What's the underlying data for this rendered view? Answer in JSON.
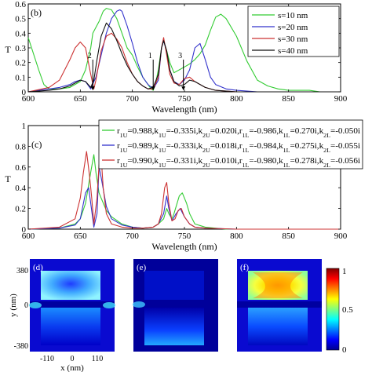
{
  "chart_data": [
    {
      "type": "line",
      "panel_label": "(b)",
      "xlabel": "Wavelength (nm)",
      "ylabel": "T",
      "xlim": [
        600,
        900
      ],
      "ylim": [
        0,
        0.6
      ],
      "xticks": [
        600,
        650,
        700,
        750,
        800,
        850,
        900
      ],
      "yticks": [
        0,
        0.1,
        0.2,
        0.3,
        0.4,
        0.5,
        0.6
      ],
      "ytick_labels": [
        "0",
        "0.1",
        "0.2",
        "0.3",
        "0.4",
        "0.5",
        "0.6"
      ],
      "legend_position": "top-right",
      "series": [
        {
          "name": "s=10 nm",
          "color": "#33cc33",
          "x": [
            600,
            610,
            615,
            620,
            625,
            630,
            640,
            650,
            655,
            660,
            662,
            665,
            668,
            672,
            675,
            680,
            685,
            690,
            695,
            700,
            705,
            710,
            715,
            718,
            720,
            722,
            725,
            728,
            730,
            733,
            736,
            740,
            745,
            750,
            755,
            760,
            765,
            770,
            775,
            780,
            785,
            790,
            800,
            810,
            820,
            830,
            840,
            850,
            860,
            870,
            880,
            890,
            900
          ],
          "y": [
            0.37,
            0.15,
            0.05,
            0.02,
            0.02,
            0.02,
            0.03,
            0.07,
            0.15,
            0.3,
            0.4,
            0.44,
            0.48,
            0.55,
            0.57,
            0.56,
            0.5,
            0.4,
            0.3,
            0.25,
            0.17,
            0.1,
            0.05,
            0.02,
            0.01,
            0.05,
            0.15,
            0.3,
            0.35,
            0.28,
            0.2,
            0.13,
            0.15,
            0.17,
            0.19,
            0.22,
            0.26,
            0.32,
            0.42,
            0.51,
            0.53,
            0.5,
            0.38,
            0.21,
            0.08,
            0.04,
            0.02,
            0.01,
            0.01,
            0.01,
            0.0,
            0.0,
            0.0
          ]
        },
        {
          "name": "s=20 nm",
          "color": "#3333cc",
          "x": [
            600,
            620,
            630,
            640,
            645,
            650,
            655,
            660,
            665,
            670,
            675,
            680,
            685,
            688,
            690,
            695,
            700,
            705,
            710,
            715,
            720,
            725,
            728,
            730,
            733,
            736,
            740,
            745,
            750,
            755,
            760,
            765,
            770,
            775,
            780,
            790,
            800,
            820,
            840,
            860,
            880,
            900
          ],
          "y": [
            0.0,
            0.02,
            0.03,
            0.05,
            0.07,
            0.08,
            0.07,
            0.02,
            0.1,
            0.25,
            0.4,
            0.5,
            0.55,
            0.56,
            0.55,
            0.45,
            0.33,
            0.2,
            0.1,
            0.05,
            0.02,
            0.08,
            0.3,
            0.35,
            0.27,
            0.15,
            0.07,
            0.05,
            0.08,
            0.15,
            0.3,
            0.33,
            0.22,
            0.1,
            0.05,
            0.02,
            0.01,
            0.0,
            0.0,
            0.0,
            0.0,
            0.0
          ]
        },
        {
          "name": "s=30 nm",
          "color": "#cc3333",
          "x": [
            600,
            620,
            630,
            640,
            645,
            650,
            655,
            660,
            663,
            665,
            670,
            675,
            680,
            685,
            690,
            695,
            700,
            705,
            710,
            715,
            720,
            725,
            728,
            730,
            733,
            736,
            740,
            745,
            750,
            755,
            760,
            770,
            780,
            800,
            820,
            840,
            860,
            880,
            900
          ],
          "y": [
            0.0,
            0.03,
            0.08,
            0.22,
            0.3,
            0.34,
            0.3,
            0.12,
            0.02,
            0.08,
            0.28,
            0.38,
            0.4,
            0.36,
            0.3,
            0.2,
            0.12,
            0.07,
            0.04,
            0.02,
            0.02,
            0.1,
            0.3,
            0.37,
            0.25,
            0.12,
            0.06,
            0.05,
            0.09,
            0.1,
            0.07,
            0.03,
            0.01,
            0.0,
            0.0,
            0.0,
            0.0,
            0.0,
            0.0
          ]
        },
        {
          "name": "s=40 nm",
          "color": "#111111",
          "x": [
            600,
            620,
            630,
            640,
            650,
            655,
            660,
            663,
            666,
            670,
            675,
            680,
            685,
            690,
            695,
            700,
            705,
            710,
            715,
            720,
            725,
            728,
            730,
            733,
            736,
            740,
            745,
            750,
            755,
            760,
            770,
            780,
            800,
            820,
            840,
            860,
            880,
            900
          ],
          "y": [
            0.0,
            0.01,
            0.02,
            0.04,
            0.08,
            0.07,
            0.03,
            0.08,
            0.22,
            0.38,
            0.47,
            0.43,
            0.35,
            0.26,
            0.18,
            0.12,
            0.07,
            0.04,
            0.02,
            0.03,
            0.12,
            0.3,
            0.35,
            0.28,
            0.15,
            0.07,
            0.04,
            0.05,
            0.08,
            0.07,
            0.03,
            0.01,
            0.0,
            0.0,
            0.0,
            0.0,
            0.0,
            0.0
          ]
        }
      ],
      "annotations": [
        {
          "label": "2",
          "x": 662,
          "y_tip": 0.01,
          "y_tail": 0.22
        },
        {
          "label": "1",
          "x": 720,
          "y_tip": 0.01,
          "y_tail": 0.22
        },
        {
          "label": "3",
          "x": 749,
          "y_tip": 0.01,
          "y_tail": 0.22
        }
      ]
    },
    {
      "type": "line",
      "panel_label": "(c)",
      "xlabel": "Wavelength (nm)",
      "ylabel": "T",
      "xlim": [
        600,
        900
      ],
      "ylim": [
        0,
        1
      ],
      "xticks": [
        600,
        650,
        700,
        750,
        800,
        850,
        900
      ],
      "yticks": [
        0,
        0.2,
        0.4,
        0.6,
        0.8,
        1
      ],
      "ytick_labels": [
        "0",
        "0.2",
        "0.4",
        "0.6",
        "0.8",
        "1"
      ],
      "legend_position": "top-right",
      "series": [
        {
          "name": "r1U=0.988,k1U=-0.335i,k2U=0.020i,r1L=-0.986,k1L=0.270i,k2L=-0.050i",
          "legend_text": [
            "r",
            "1U",
            "=0.988,k",
            "1U",
            "=-0.335i,k",
            "2U",
            "=0.020i,r",
            "1L",
            "=-0.986,k",
            "1L",
            "=0.270i,k",
            "2L",
            "=-0.050i"
          ],
          "color": "#33cc33",
          "x": [
            600,
            630,
            645,
            650,
            655,
            660,
            663,
            665,
            668,
            670,
            675,
            680,
            690,
            700,
            710,
            720,
            725,
            730,
            733,
            735,
            738,
            740,
            745,
            748,
            752,
            755,
            760,
            770,
            790,
            820,
            860,
            900
          ],
          "y": [
            0.0,
            0.01,
            0.05,
            0.1,
            0.25,
            0.55,
            0.72,
            0.55,
            0.35,
            0.3,
            0.18,
            0.12,
            0.05,
            0.02,
            0.01,
            0.02,
            0.05,
            0.1,
            0.2,
            0.15,
            0.1,
            0.15,
            0.32,
            0.35,
            0.25,
            0.15,
            0.05,
            0.02,
            0.0,
            0.0,
            0.0,
            0.0
          ]
        },
        {
          "name": "r1U=0.989,k1U=-0.333i,k2U=0.018i,r1L=-0.984,k1L=0.275i,k2L=-0.055i",
          "legend_text": [
            "r",
            "1U",
            "=0.989,k",
            "1U",
            "=-0.333i,k",
            "2U",
            "=0.018i,r",
            "1L",
            "=-0.984,k",
            "1L",
            "=0.275i,k",
            "2L",
            "=-0.055i"
          ],
          "color": "#3333cc",
          "x": [
            600,
            630,
            645,
            650,
            655,
            658,
            660,
            663,
            666,
            668,
            670,
            675,
            680,
            690,
            700,
            710,
            720,
            725,
            730,
            733,
            735,
            738,
            742,
            746,
            750,
            755,
            760,
            770,
            800,
            840,
            880,
            900
          ],
          "y": [
            0.0,
            0.01,
            0.04,
            0.1,
            0.35,
            0.4,
            0.25,
            0.02,
            0.15,
            0.6,
            0.5,
            0.22,
            0.1,
            0.04,
            0.02,
            0.01,
            0.02,
            0.05,
            0.15,
            0.32,
            0.2,
            0.08,
            0.15,
            0.2,
            0.12,
            0.05,
            0.02,
            0.01,
            0.0,
            0.0,
            0.0,
            0.0
          ]
        },
        {
          "name": "r1U=0.990,k1U=-0.331i,k2U=0.010i,r1L=-0.980,k1L=0.278i,k2L=-0.056i",
          "legend_text": [
            "r",
            "1U",
            "=0.990,k",
            "1U",
            "=-0.331i,k",
            "2U",
            "=0.010i,r",
            "1L",
            "=-0.980,k",
            "1L",
            "=0.278i,k",
            "2L",
            "=-0.056i"
          ],
          "color": "#cc3333",
          "x": [
            600,
            630,
            645,
            650,
            653,
            656,
            659,
            661,
            663,
            666,
            668,
            670,
            672,
            675,
            680,
            690,
            700,
            710,
            720,
            725,
            728,
            731,
            733,
            735,
            738,
            741,
            744,
            747,
            750,
            755,
            760,
            770,
            800,
            840,
            880,
            900
          ],
          "y": [
            0.0,
            0.02,
            0.1,
            0.3,
            0.55,
            0.75,
            0.5,
            0.3,
            0.05,
            0.3,
            0.62,
            0.7,
            0.4,
            0.15,
            0.05,
            0.02,
            0.01,
            0.01,
            0.02,
            0.05,
            0.15,
            0.4,
            0.45,
            0.25,
            0.08,
            0.1,
            0.18,
            0.2,
            0.12,
            0.05,
            0.02,
            0.01,
            0.0,
            0.0,
            0.0,
            0.0
          ]
        }
      ]
    },
    {
      "type": "heatmap",
      "panel_labels": [
        "(d)",
        "(e)",
        "(f)"
      ],
      "xlabel": "x (nm)",
      "ylabel": "y (nm)",
      "xtick_labels": [
        "-110",
        "0",
        "110"
      ],
      "ytick_labels": [
        "380",
        "0",
        "-380"
      ],
      "colorbar": {
        "min": 0,
        "max": 1,
        "tick_labels": [
          "0",
          "0.5",
          "1"
        ],
        "colormap": "jet"
      }
    }
  ]
}
